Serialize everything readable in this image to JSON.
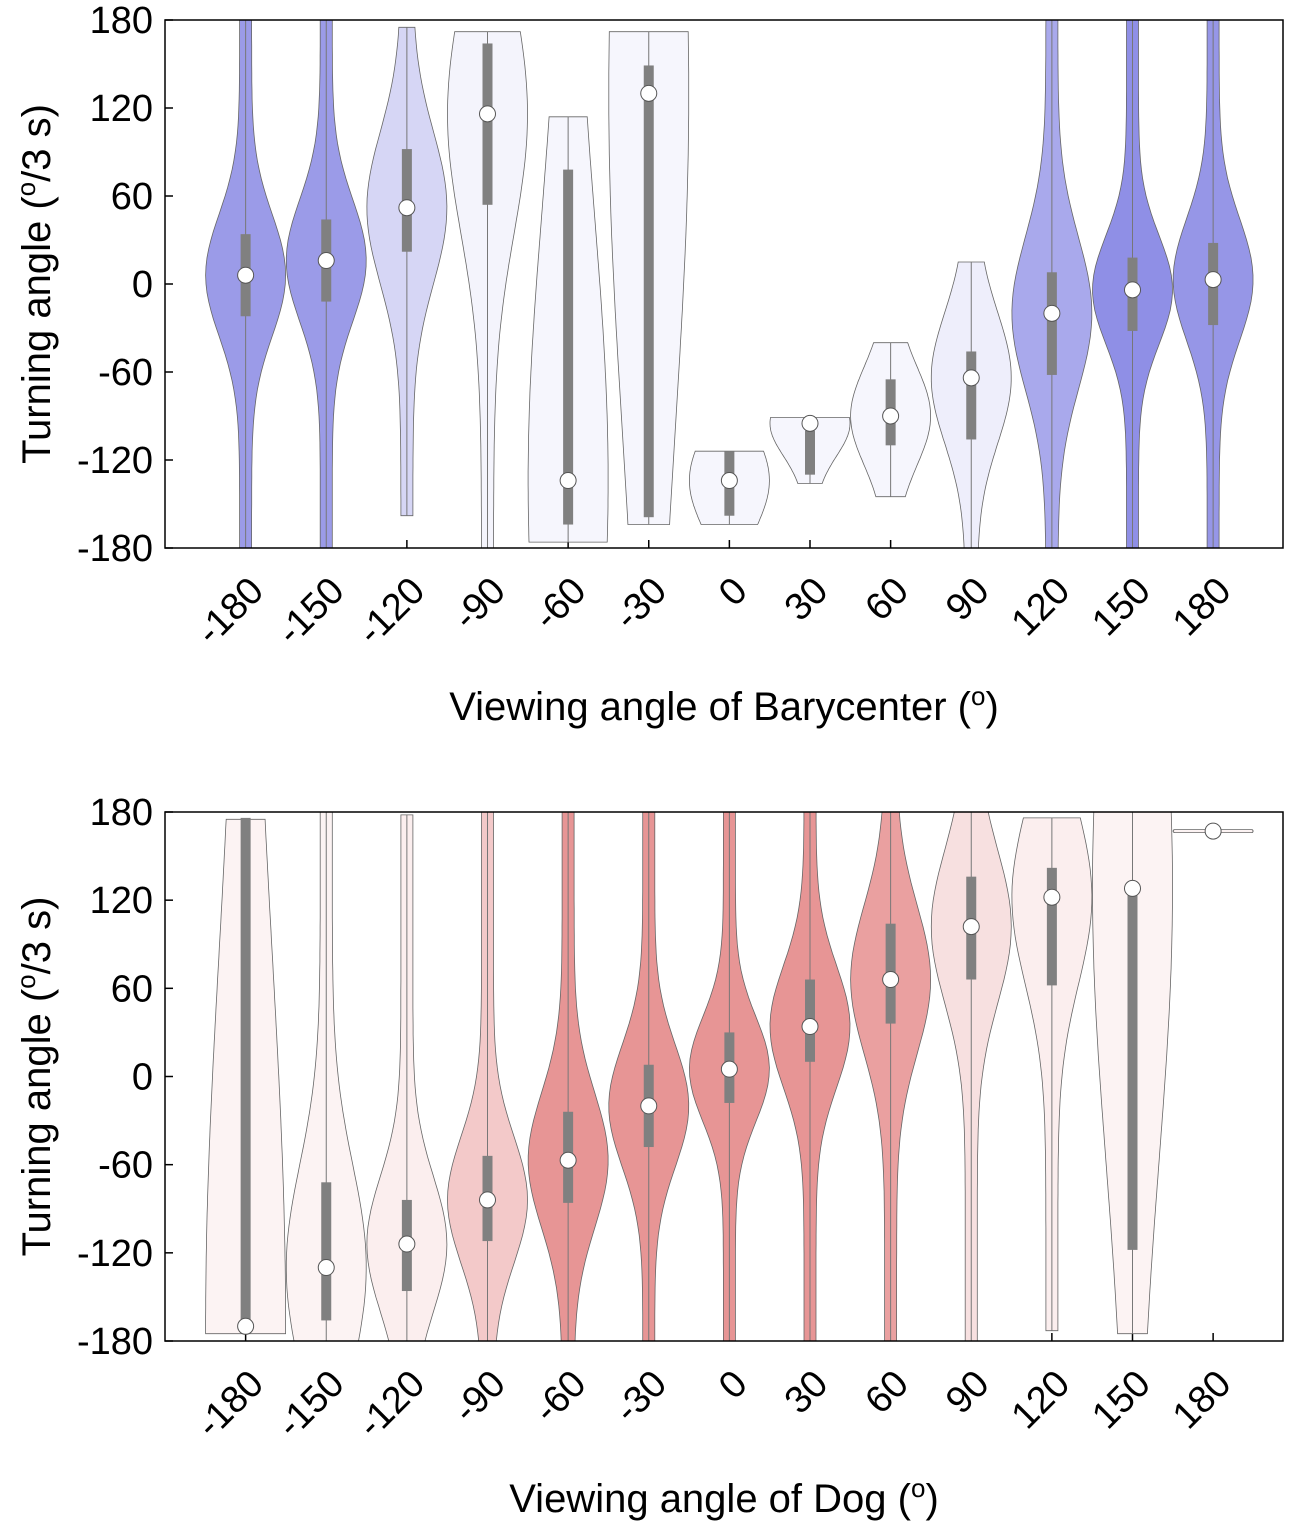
{
  "chart_data": [
    {
      "type": "violin",
      "xlabel": [
        "Viewing angle of Barycenter (",
        "o",
        ")"
      ],
      "ylabel": [
        "Turning angle (",
        "o",
        "/3 s)"
      ],
      "x": [
        -180,
        -150,
        -120,
        -90,
        -60,
        -30,
        0,
        30,
        60,
        90,
        120,
        150,
        180
      ],
      "median": [
        6,
        16,
        52,
        116,
        -134,
        130,
        -134,
        -95,
        -90,
        -64,
        -20,
        -4,
        3
      ],
      "q1": [
        -22,
        -12,
        22,
        54,
        -164,
        -159,
        -158,
        -130,
        -110,
        -106,
        -62,
        -32,
        -28
      ],
      "q3": [
        34,
        44,
        92,
        164,
        78,
        149,
        -114,
        -100,
        -65,
        -46,
        8,
        18,
        28
      ],
      "min": [
        -180,
        -180,
        -158,
        -180,
        -176,
        -164,
        -164,
        -136,
        -145,
        -180,
        -180,
        -180,
        -180
      ],
      "max": [
        180,
        180,
        175,
        172,
        114,
        172,
        -114,
        -91,
        -40,
        15,
        180,
        180,
        180
      ],
      "fill_colors": [
        "#9b9be8",
        "#9b9be8",
        "#d6d6f5",
        "#f4f4fc",
        "#f6f6fd",
        "#f6f6fd",
        "#f6f6fd",
        "#f6f6fd",
        "#f6f6fd",
        "#eeeefb",
        "#a9a9ec",
        "#8f8fe6",
        "#9696e7"
      ],
      "box_color": "#808080",
      "xlim": [
        -210,
        206
      ],
      "xticks": [
        -180,
        -150,
        -120,
        -90,
        -60,
        -30,
        0,
        30,
        60,
        90,
        120,
        150,
        180
      ],
      "ylim": [
        -180,
        180
      ],
      "yticks": [
        -180,
        -120,
        -60,
        0,
        60,
        120,
        180
      ]
    },
    {
      "type": "violin",
      "xlabel": [
        "Viewing angle of Dog (",
        "o",
        ")"
      ],
      "ylabel": [
        "Turning angle (",
        "o",
        "/3 s)"
      ],
      "x": [
        -180,
        -150,
        -120,
        -90,
        -60,
        -30,
        0,
        30,
        60,
        90,
        120,
        150,
        180
      ],
      "median": [
        -170,
        -130,
        -114,
        -84,
        -57,
        -20,
        5,
        34,
        66,
        102,
        122,
        128,
        167
      ],
      "q1": [
        -166,
        -166,
        -146,
        -112,
        -86,
        -48,
        -18,
        10,
        36,
        66,
        62,
        -118,
        167
      ],
      "q3": [
        176,
        -72,
        -84,
        -54,
        -24,
        8,
        30,
        66,
        104,
        136,
        142,
        132,
        167
      ],
      "min": [
        -175,
        -180,
        -180,
        -180,
        -180,
        -180,
        -180,
        -180,
        -180,
        -180,
        -173,
        -175,
        166
      ],
      "max": [
        175,
        180,
        178,
        180,
        180,
        180,
        180,
        180,
        180,
        180,
        176,
        180,
        168
      ],
      "fill_colors": [
        "#fcf3f3",
        "#fcf3f3",
        "#fbeeee",
        "#f3c9c9",
        "#e79595",
        "#e79595",
        "#e79595",
        "#e79595",
        "#eaa0a0",
        "#f7e0e0",
        "#fbeeee",
        "#fcf3f3",
        "#fcf3f3"
      ],
      "box_color": "#808080",
      "xlim": [
        -210,
        206
      ],
      "xticks": [
        -180,
        -150,
        -120,
        -90,
        -60,
        -30,
        0,
        30,
        60,
        90,
        120,
        150,
        180
      ],
      "ylim": [
        -180,
        180
      ],
      "yticks": [
        -180,
        -120,
        -60,
        0,
        60,
        120,
        180
      ]
    }
  ]
}
